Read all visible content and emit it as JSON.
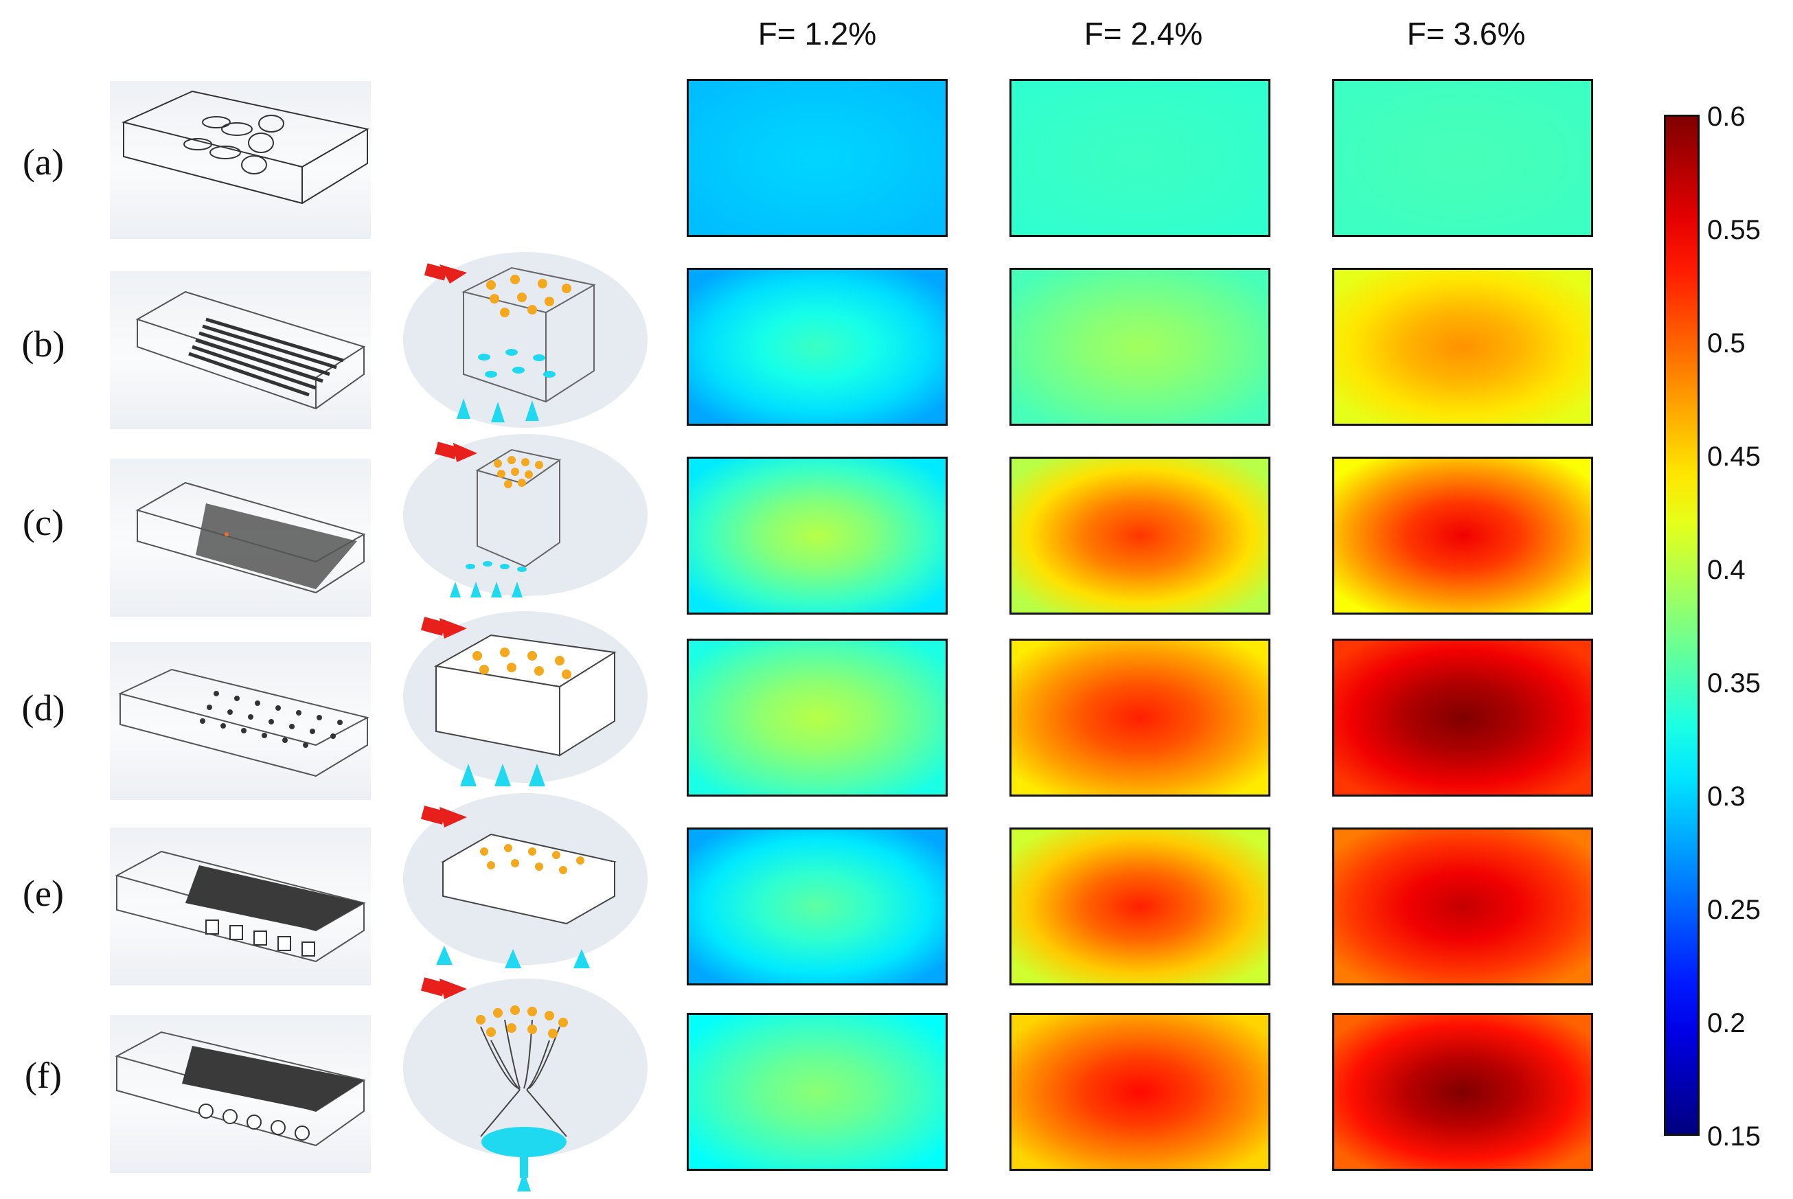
{
  "column_headers": [
    "F= 1.2%",
    "F= 2.4%",
    "F= 3.6%"
  ],
  "rows": [
    {
      "label": "(a)",
      "model": "open-channel",
      "sketch": false,
      "peak": [
        0.3,
        0.345,
        0.35
      ],
      "edge": [
        0.29,
        0.34,
        0.345
      ]
    },
    {
      "label": "(b)",
      "model": "pin-array",
      "sketch": true,
      "peak": [
        0.345,
        0.39,
        0.48
      ],
      "edge": [
        0.28,
        0.35,
        0.42
      ]
    },
    {
      "label": "(c)",
      "model": "dense-pin-array",
      "sketch": true,
      "peak": [
        0.4,
        0.52,
        0.55
      ],
      "edge": [
        0.31,
        0.4,
        0.43
      ]
    },
    {
      "label": "(d)",
      "model": "lattice",
      "sketch": true,
      "peak": [
        0.4,
        0.53,
        0.6
      ],
      "edge": [
        0.33,
        0.44,
        0.52
      ]
    },
    {
      "label": "(e)",
      "model": "grooved-lattice",
      "sketch": true,
      "peak": [
        0.36,
        0.53,
        0.57
      ],
      "edge": [
        0.28,
        0.41,
        0.49
      ]
    },
    {
      "label": "(f)",
      "model": "tree-lattice",
      "sketch": true,
      "peak": [
        0.38,
        0.54,
        0.6
      ],
      "edge": [
        0.32,
        0.45,
        0.5
      ]
    }
  ],
  "colorbar": {
    "min": 0.15,
    "max": 0.6,
    "ticks": [
      "0.6",
      "0.55",
      "0.5",
      "0.45",
      "0.4",
      "0.35",
      "0.3",
      "0.25",
      "0.2",
      "0.15"
    ]
  },
  "colors": {
    "inlet_arrow": "#e8201c",
    "pin_orange": "#f3a81d",
    "inlet_cyan": "#1fd9f0"
  }
}
